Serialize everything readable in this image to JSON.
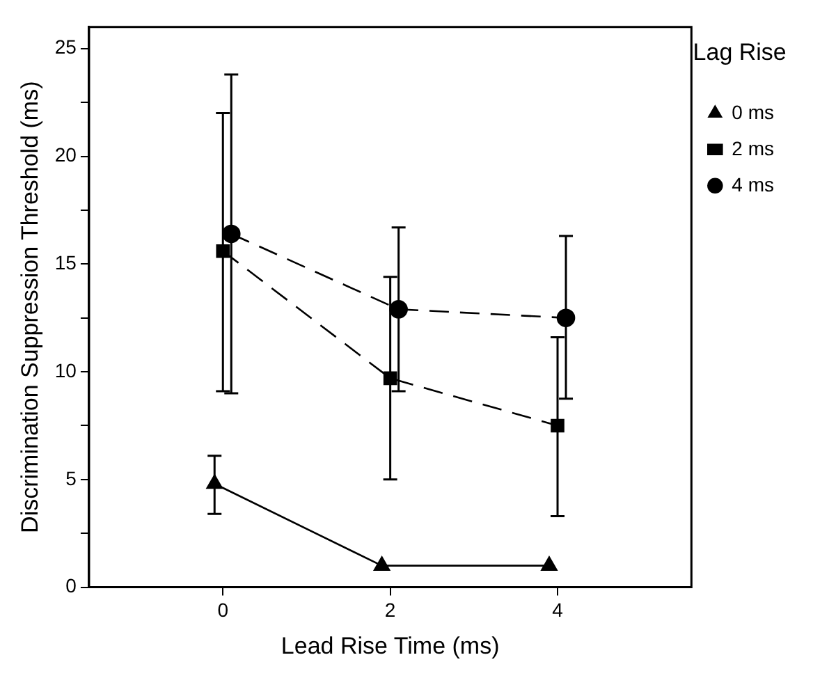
{
  "chart_data": {
    "type": "line",
    "xlabel": "Lead Rise Time (ms)",
    "ylabel": "Discrimination Suppression Threshold (ms)",
    "legend_title": "Lag Rise",
    "legend": "right",
    "grid": false,
    "xlim": [
      -1.6,
      5.6
    ],
    "xticks": [
      0,
      2,
      4
    ],
    "ylim": [
      0,
      26
    ],
    "yticks": [
      0,
      {
        "value": 2.5,
        "label": null
      },
      5,
      {
        "value": 7.5,
        "label": null
      },
      10,
      {
        "value": 12.5,
        "label": null
      },
      15,
      {
        "value": 17.5,
        "label": null
      },
      20,
      {
        "value": 22.5,
        "label": null
      },
      25
    ],
    "series": [
      {
        "name": "0 ms",
        "color": "#000000",
        "marker": "triangle",
        "line_style": "solid",
        "x": [
          -0.1,
          1.9,
          3.9
        ],
        "values": [
          4.8,
          1.0,
          1.0
        ],
        "errors": [
          [
            3.4,
            6.1
          ],
          null,
          null
        ]
      },
      {
        "name": "2 ms",
        "color": "#000000",
        "marker": "square",
        "line_style": "dashed",
        "x": [
          0,
          2,
          4
        ],
        "values": [
          15.6,
          9.7,
          7.5
        ],
        "errors": [
          [
            9.1,
            22.0
          ],
          [
            5.0,
            14.4
          ],
          [
            3.3,
            11.6
          ]
        ]
      },
      {
        "name": "4 ms",
        "color": "#000000",
        "marker": "circle",
        "line_style": "dashed",
        "x": [
          0.1,
          2.1,
          4.1
        ],
        "values": [
          16.4,
          12.9,
          12.5
        ],
        "errors": [
          [
            9.0,
            23.8
          ],
          [
            9.1,
            16.7
          ],
          [
            8.75,
            16.3
          ]
        ]
      }
    ]
  }
}
